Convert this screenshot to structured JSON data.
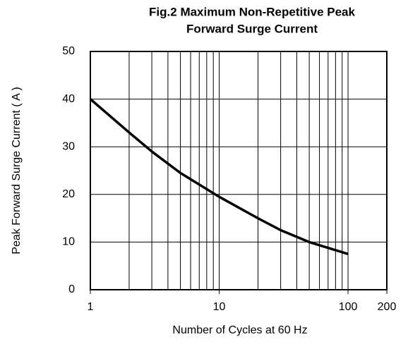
{
  "chart_data": {
    "type": "line",
    "title": [
      "Fig.2 Maximum Non-Repetitive Peak",
      "Forward Surge Current"
    ],
    "x_label": "Number of Cycles at 60 Hz",
    "y_label": "Peak Forward Surge Current ( A )",
    "x": [
      1,
      2,
      3,
      5,
      10,
      20,
      30,
      50,
      100
    ],
    "series": [
      {
        "name": "Peak Forward Surge Current",
        "color": "#000000",
        "values": [
          40,
          33,
          29,
          24.5,
          19.5,
          15,
          12.5,
          10,
          7.5
        ]
      }
    ],
    "x_scale": "log",
    "xlim": [
      1,
      200
    ],
    "xticks": [
      1,
      10,
      100,
      200
    ],
    "x_grid": [
      2,
      3,
      4,
      5,
      6,
      7,
      8,
      9,
      10,
      20,
      30,
      40,
      50,
      60,
      70,
      80,
      90,
      100
    ],
    "ylim": [
      0,
      50
    ],
    "yticks": [
      0,
      10,
      20,
      30,
      40,
      50
    ],
    "grid": true,
    "legend": false
  }
}
